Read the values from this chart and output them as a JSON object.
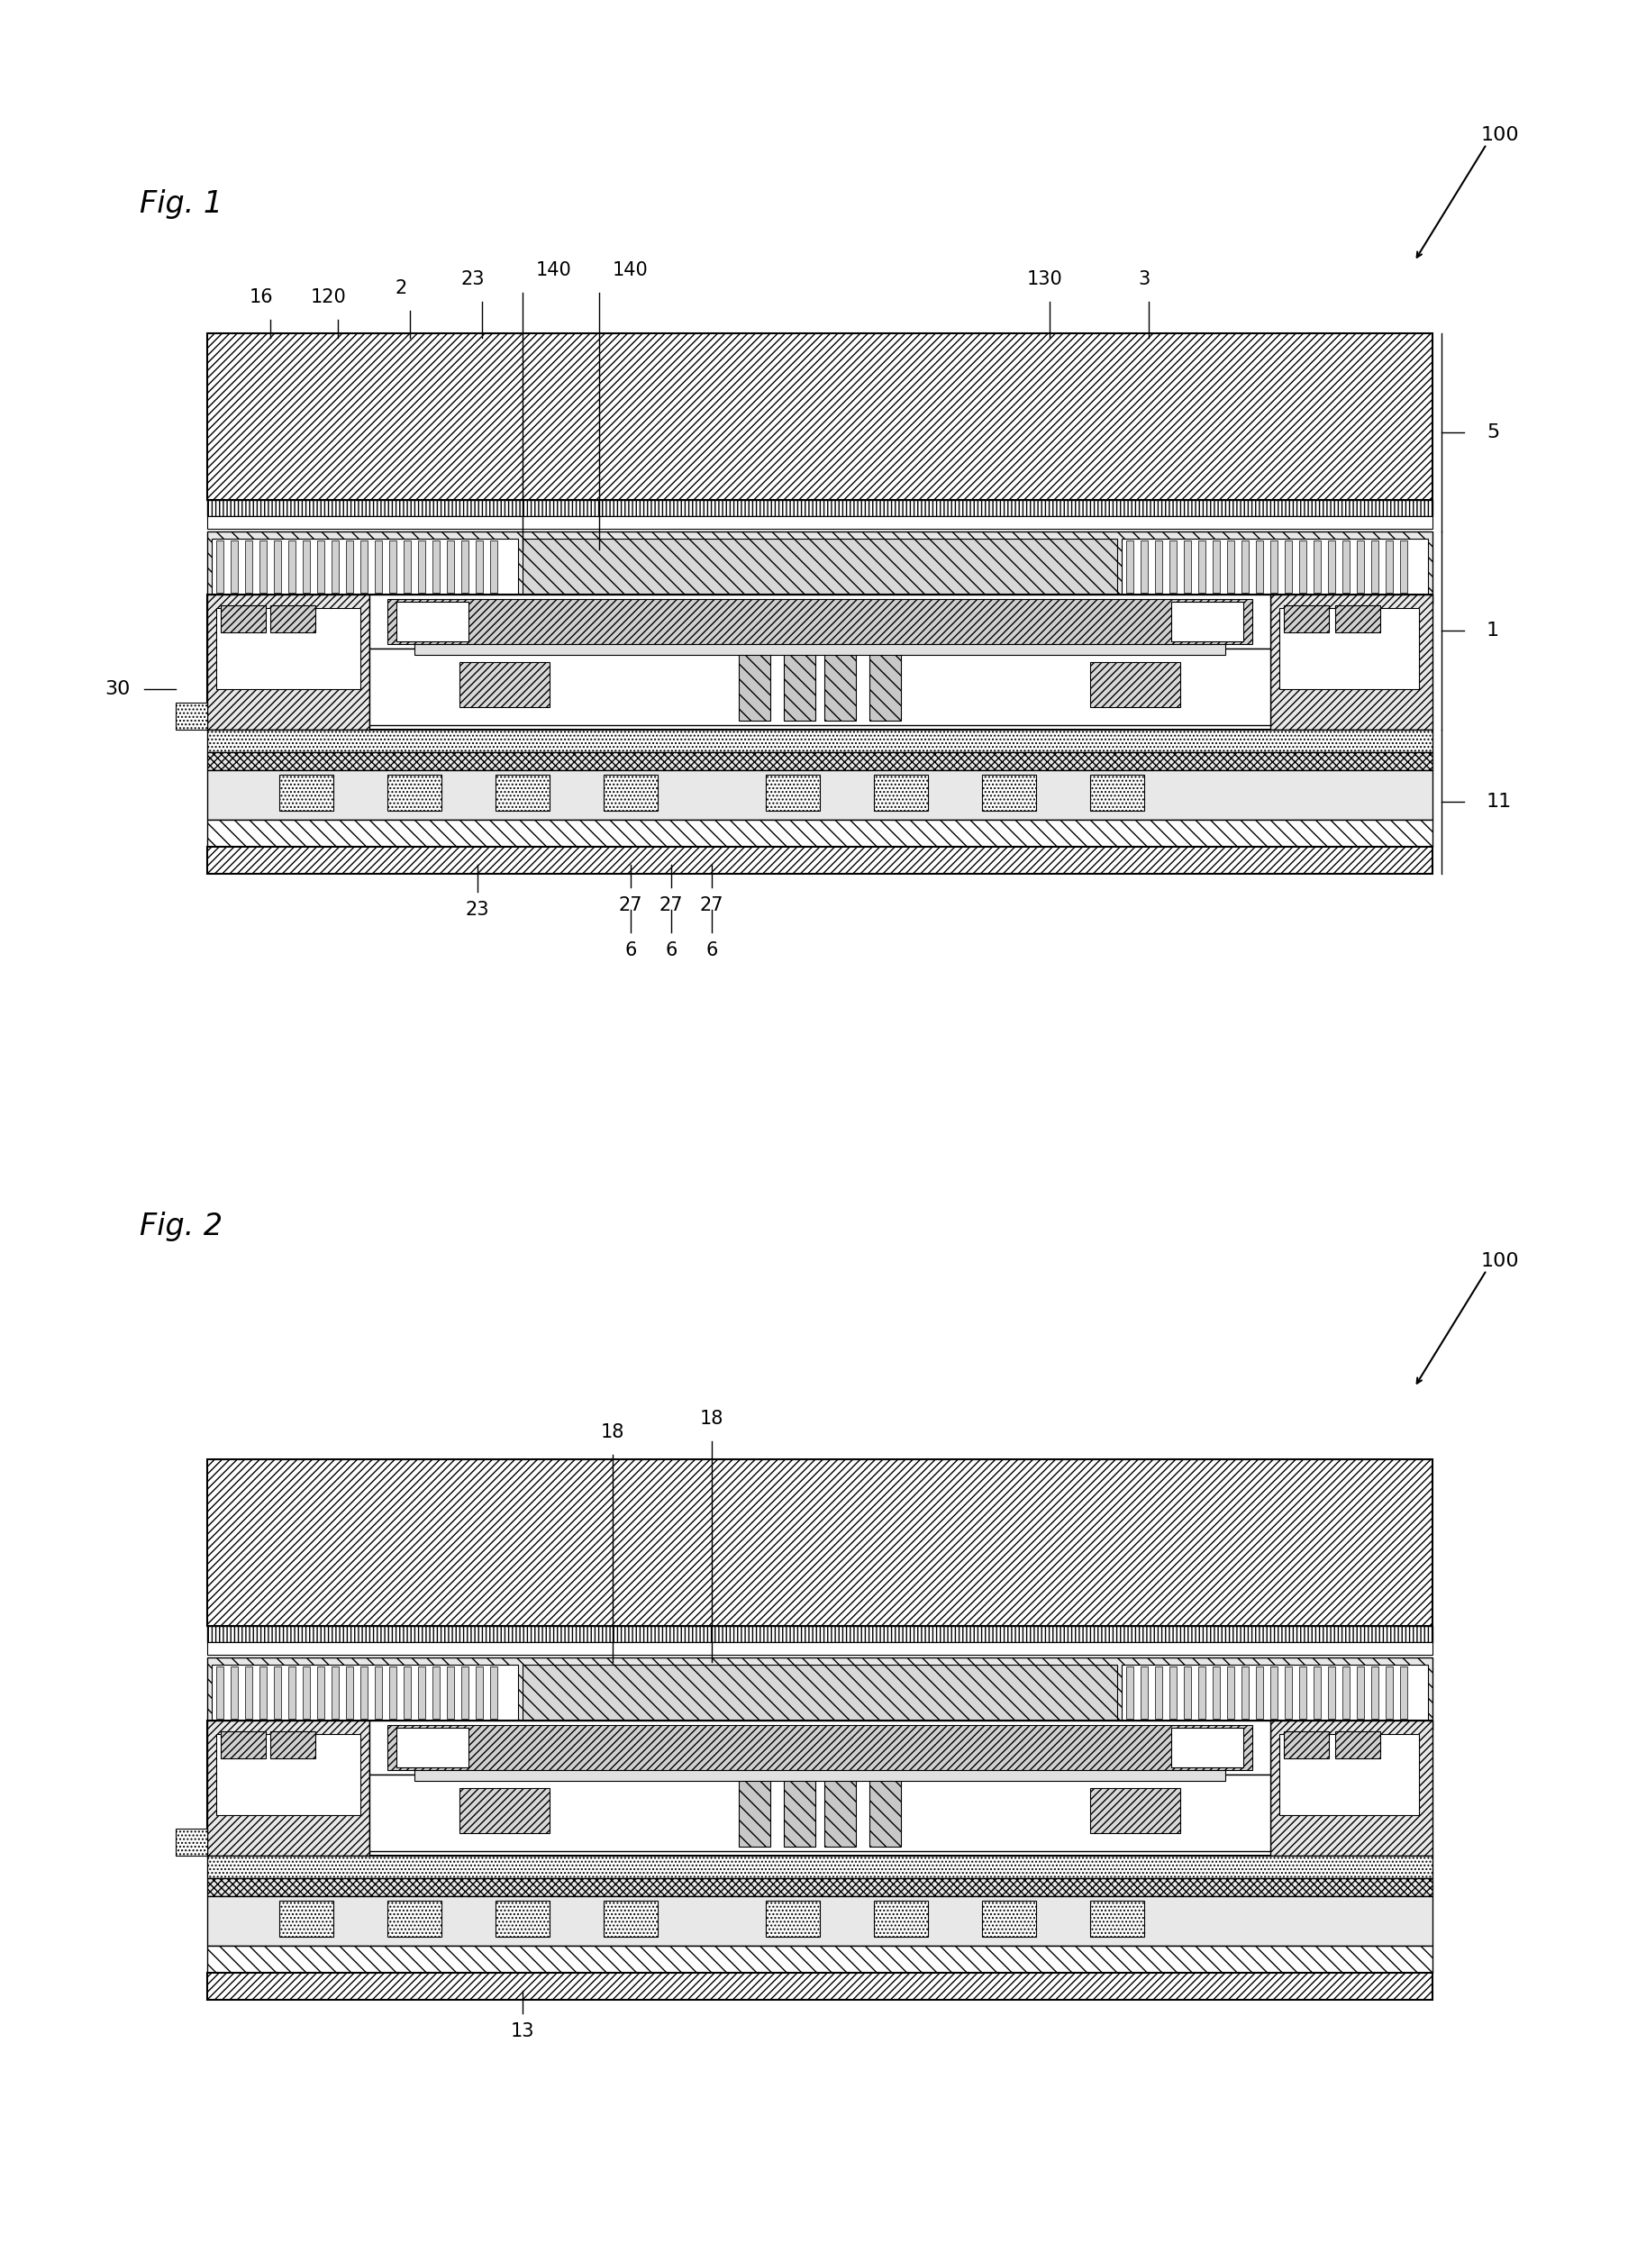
{
  "background_color": "#ffffff",
  "fig1_label": "Fig. 1",
  "fig2_label": "Fig. 2",
  "ref_100": "100",
  "ref_30": "30",
  "ref_16": "16",
  "ref_120": "120",
  "ref_2": "2",
  "ref_23a": "23",
  "ref_140a": "140",
  "ref_140b": "140",
  "ref_130": "130",
  "ref_3": "3",
  "ref_5": "5",
  "ref_1": "1",
  "ref_11": "11",
  "ref_23b": "23",
  "ref_27a": "27",
  "ref_27b": "27",
  "ref_27c": "27",
  "ref_6a": "6",
  "ref_6b": "6",
  "ref_6c": "6",
  "ref_18a": "18",
  "ref_18b": "18",
  "ref_13": "13",
  "font_size": 16,
  "fig_label_font_size": 24
}
